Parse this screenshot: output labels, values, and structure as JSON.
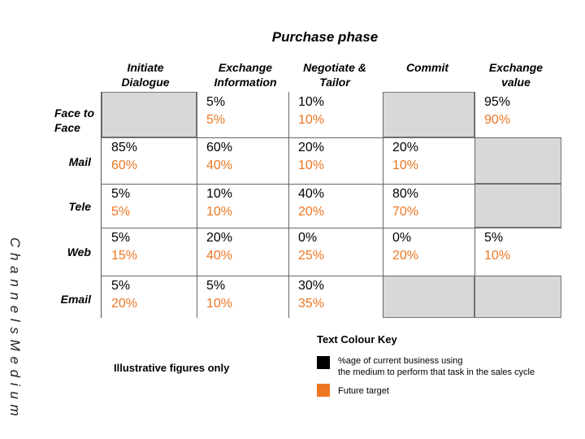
{
  "title": "Purchase phase",
  "columns": [
    "Initiate\nDialogue",
    "Exchange\nInformation",
    "Negotiate &\nTailor",
    "Commit",
    "Exchange\nvalue"
  ],
  "rows": [
    {
      "label": "Face to\nFace",
      "cells": [
        {
          "grey": true,
          "current": "",
          "future": ""
        },
        {
          "grey": false,
          "current": "5%",
          "future": "5%"
        },
        {
          "grey": false,
          "current": "10%",
          "future": "10%"
        },
        {
          "grey": true,
          "current": "",
          "future": ""
        },
        {
          "grey": false,
          "current": "95%",
          "future": "90%"
        }
      ]
    },
    {
      "label": "Mail",
      "cells": [
        {
          "grey": false,
          "current": "85%",
          "future": "60%"
        },
        {
          "grey": false,
          "current": "60%",
          "future": "40%"
        },
        {
          "grey": false,
          "current": "20%",
          "future": "10%"
        },
        {
          "grey": false,
          "current": "20%",
          "future": "10%"
        },
        {
          "grey": true,
          "current": "",
          "future": ""
        }
      ]
    },
    {
      "label": "Tele",
      "cells": [
        {
          "grey": false,
          "current": "5%",
          "future": "5%"
        },
        {
          "grey": false,
          "current": "10%",
          "future": "10%"
        },
        {
          "grey": false,
          "current": "40%",
          "future": "20%"
        },
        {
          "grey": false,
          "current": "80%",
          "future": "70%"
        },
        {
          "grey": true,
          "current": "",
          "future": ""
        }
      ]
    },
    {
      "label": "Web",
      "cells": [
        {
          "grey": false,
          "current": "5%",
          "future": "15%"
        },
        {
          "grey": false,
          "current": "20%",
          "future": "40%"
        },
        {
          "grey": false,
          "current": "0%",
          "future": "25%"
        },
        {
          "grey": false,
          "current": "0%",
          "future": "20%"
        },
        {
          "grey": false,
          "current": "5%",
          "future": "10%"
        }
      ]
    },
    {
      "label": "Email",
      "cells": [
        {
          "grey": false,
          "current": "5%",
          "future": "20%"
        },
        {
          "grey": false,
          "current": "5%",
          "future": "10%"
        },
        {
          "grey": false,
          "current": "30%",
          "future": "35%"
        },
        {
          "grey": true,
          "current": "",
          "future": ""
        },
        {
          "grey": true,
          "current": "",
          "future": ""
        }
      ]
    }
  ],
  "jumbled_text": "C h a n n e l s M e d i u m",
  "key": {
    "title": "Text Colour Key",
    "current_label": "%age of current business using\nthe medium to perform that task in the sales cycle",
    "future_label": "Future target",
    "current_color": "#000000",
    "future_color": "#ee7623"
  },
  "note": "Illustrative figures only"
}
